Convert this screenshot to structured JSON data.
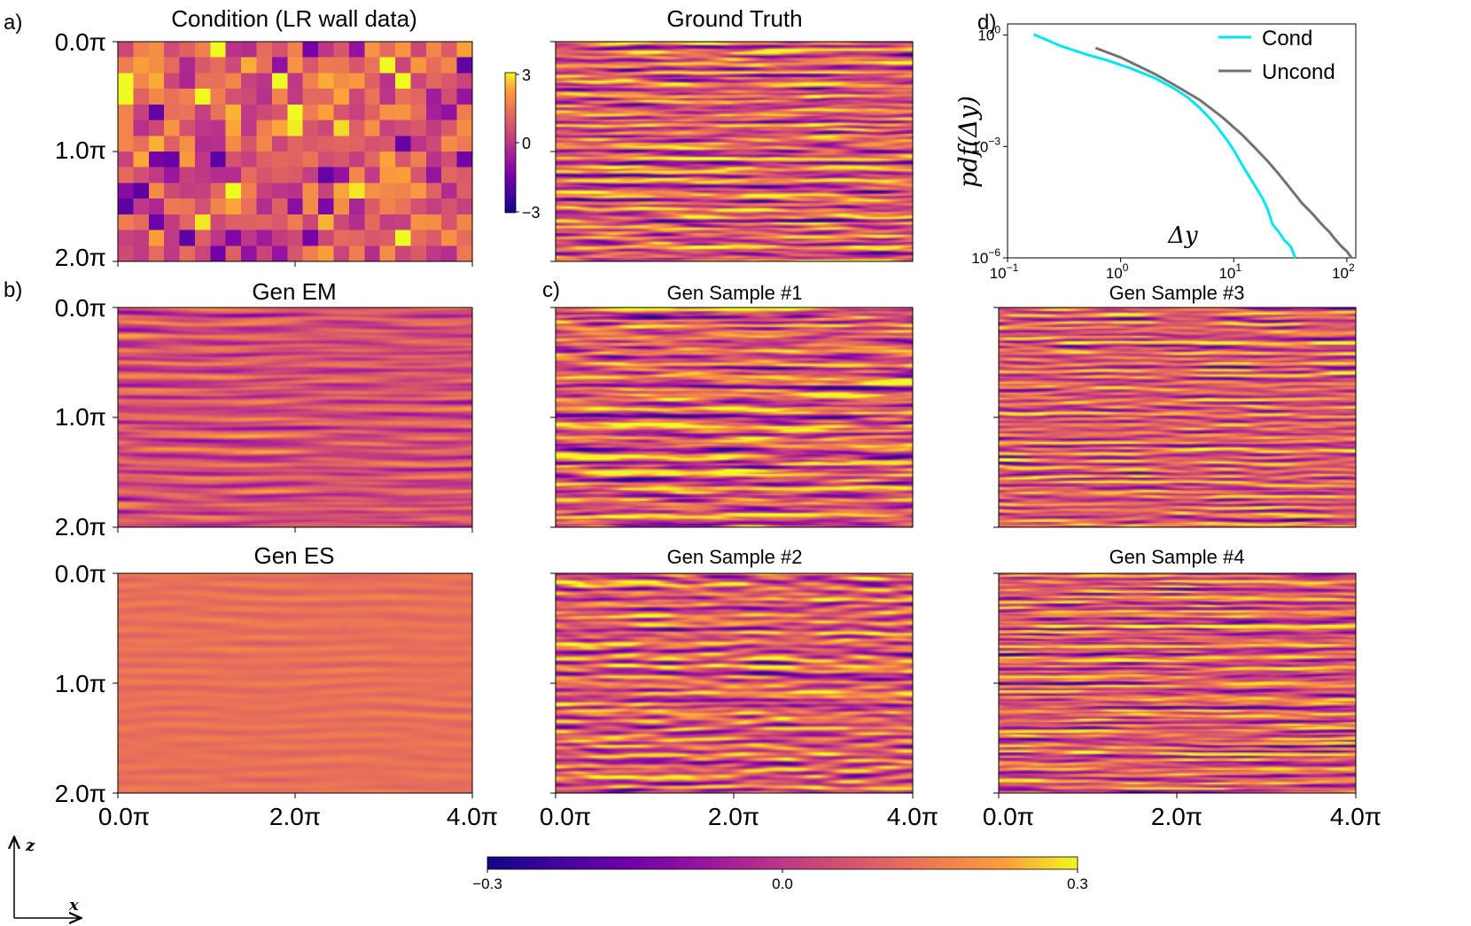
{
  "panel_letters": {
    "a": "a)",
    "b": "b)",
    "c": "c)",
    "d": "d)"
  },
  "fields": [
    {
      "id": "cond",
      "title": "Condition (LR wall data)",
      "kind": "pixel"
    },
    {
      "id": "gt",
      "title": "Ground Truth",
      "kind": "streak",
      "seed": 11
    },
    {
      "id": "em",
      "title": "Gen EM",
      "kind": "smooth",
      "seed": 23
    },
    {
      "id": "es",
      "title": "Gen ES",
      "kind": "flat",
      "seed": 37
    },
    {
      "id": "s1",
      "title": "Gen Sample #1",
      "kind": "streak",
      "seed": 53
    },
    {
      "id": "s2",
      "title": "Gen Sample #2",
      "kind": "streak",
      "seed": 71
    },
    {
      "id": "s3",
      "title": "Gen Sample #3",
      "kind": "streak",
      "seed": 89
    },
    {
      "id": "s4",
      "title": "Gen Sample #4",
      "kind": "streak",
      "seed": 97
    }
  ],
  "z_ticks": [
    "0.0π",
    "1.0π",
    "2.0π"
  ],
  "x_ticks": [
    "0.0π",
    "2.0π",
    "4.0π"
  ],
  "cond_colorbar": {
    "ticks": [
      "3",
      "0",
      "−3"
    ],
    "range": [
      -3,
      3
    ]
  },
  "main_colorbar": {
    "ticks": [
      "−0.3",
      "0.0",
      "0.3"
    ],
    "range": [
      -0.3,
      0.3
    ]
  },
  "axes_indicator": {
    "vertical": "z",
    "horizontal": "x"
  },
  "colors": {
    "plasma_low": "#0d0887",
    "plasma_mid": "#cc4778",
    "plasma_high": "#f0f921",
    "cond": "#00e5ee",
    "uncond": "#737373"
  },
  "chart_data": {
    "type": "line",
    "scale": "log-log",
    "xlabel": "Δy",
    "ylabel": "pdf(Δy)",
    "xlim": [
      0.1,
      120
    ],
    "ylim": [
      1e-06,
      2
    ],
    "x_ticks": [
      {
        "value": 0.1,
        "base": "10",
        "exp": "−1"
      },
      {
        "value": 1,
        "base": "10",
        "exp": "0"
      },
      {
        "value": 10,
        "base": "10",
        "exp": "1"
      },
      {
        "value": 100,
        "base": "10",
        "exp": "2"
      }
    ],
    "y_ticks": [
      {
        "value": 1,
        "base": "10",
        "exp": "0"
      },
      {
        "value": 0.001,
        "base": "10",
        "exp": "−3"
      },
      {
        "value": 1e-06,
        "base": "10",
        "exp": "−6"
      }
    ],
    "legend_position": "top-right",
    "series": [
      {
        "name": "Cond",
        "color": "#00e5ee",
        "x": [
          0.17,
          0.3,
          0.5,
          0.8,
          1.2,
          2,
          3,
          4,
          5,
          6,
          7,
          8,
          9,
          10,
          12,
          15,
          18,
          20,
          22,
          25,
          28,
          32,
          35
        ],
        "y": [
          1.05,
          0.5,
          0.3,
          0.2,
          0.13,
          0.07,
          0.036,
          0.02,
          0.011,
          0.0062,
          0.0036,
          0.0021,
          0.0013,
          0.0008,
          0.0003,
          0.0001,
          4e-05,
          2e-05,
          8e-06,
          5e-06,
          3e-06,
          2e-06,
          1e-06
        ]
      },
      {
        "name": "Uncond",
        "color": "#737373",
        "x": [
          0.6,
          1,
          2,
          3,
          5,
          8,
          12,
          15,
          20,
          25,
          30,
          40,
          50,
          60,
          70,
          80,
          90,
          100,
          110
        ],
        "y": [
          0.45,
          0.25,
          0.09,
          0.045,
          0.018,
          0.006,
          0.002,
          0.001,
          0.0004,
          0.00018,
          9e-05,
          3e-05,
          1.5e-05,
          8e-06,
          5e-06,
          3e-06,
          2e-06,
          1.5e-06,
          1e-06
        ]
      }
    ]
  }
}
